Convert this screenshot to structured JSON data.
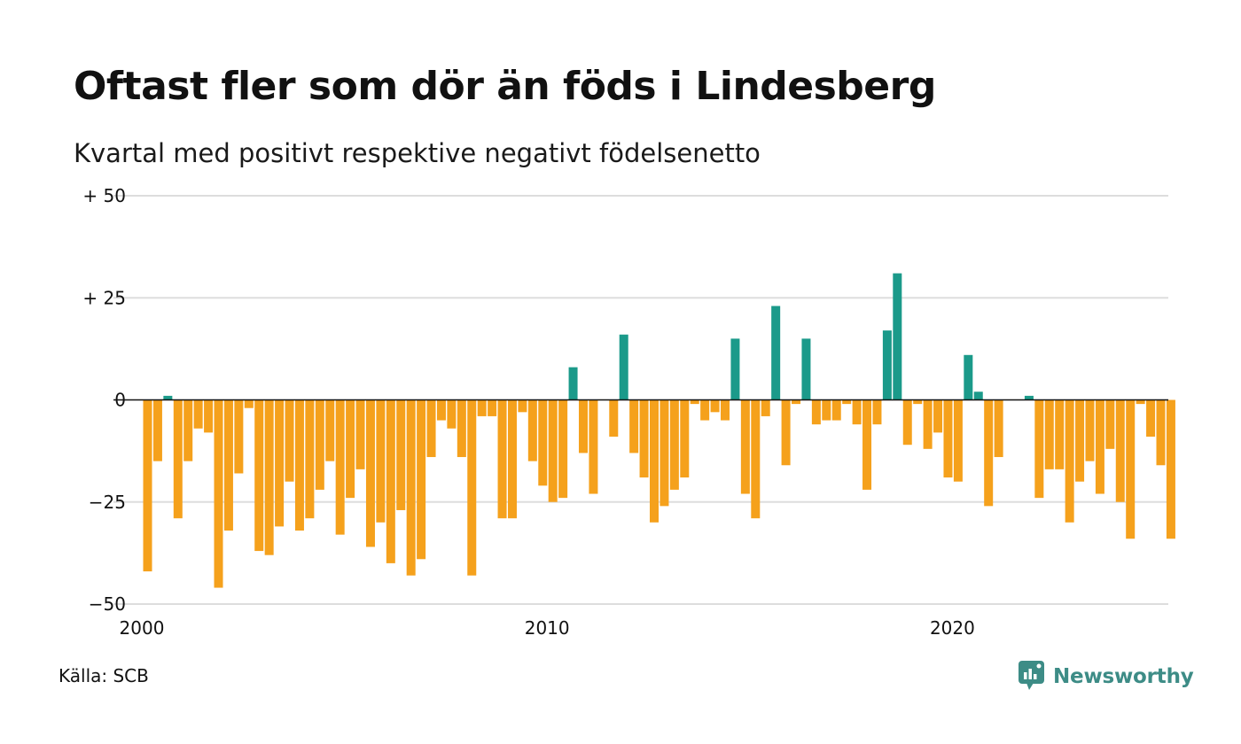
{
  "title": "Oftast fler som dör än föds i Lindesberg",
  "subtitle": "Kvartal med positivt respektive negativt födelsenetto",
  "source": "Källa: SCB",
  "brand": {
    "name": "Newsworthy",
    "icon": "newsworthy-logo-icon",
    "color": "#3d8c86"
  },
  "colors": {
    "positive": "#1b9a8a",
    "negative": "#f5a11c",
    "grid": "#dddddd",
    "zero_line": "#111111"
  },
  "chart_data": {
    "type": "bar",
    "title": "Oftast fler som dör än föds i Lindesberg",
    "subtitle": "Kvartal med positivt respektive negativt födelsenetto",
    "xlabel": "",
    "ylabel": "",
    "ylim": [
      -50,
      50
    ],
    "y_ticks": [
      {
        "value": 50,
        "label": "+ 50"
      },
      {
        "value": 25,
        "label": "+ 25"
      },
      {
        "value": 0,
        "label": "0"
      },
      {
        "value": -25,
        "label": "−25"
      },
      {
        "value": -50,
        "label": "−50"
      }
    ],
    "x_ticks": [
      {
        "year": 2000,
        "label": "2000"
      },
      {
        "year": 2010,
        "label": "2010"
      },
      {
        "year": 2020,
        "label": "2020"
      }
    ],
    "x_start": "2000 Q1",
    "grid": true,
    "legend": "none",
    "values": [
      -42,
      -15,
      1,
      -29,
      -15,
      -7,
      -8,
      -46,
      -32,
      -18,
      -2,
      -37,
      -38,
      -31,
      -20,
      -32,
      -29,
      -22,
      -15,
      -33,
      -24,
      -17,
      -36,
      -30,
      -40,
      -27,
      -43,
      -39,
      -14,
      -5,
      -7,
      -14,
      -43,
      -4,
      -4,
      -29,
      -29,
      -3,
      -15,
      -21,
      -25,
      -24,
      8,
      -13,
      -23,
      0,
      -9,
      16,
      -13,
      -19,
      -30,
      -26,
      -22,
      -19,
      -1,
      -5,
      -3,
      -5,
      15,
      -23,
      -29,
      -4,
      23,
      -16,
      -1,
      15,
      -6,
      -5,
      -5,
      -1,
      -6,
      -22,
      -6,
      17,
      31,
      -11,
      -1,
      -12,
      -8,
      -19,
      -20,
      11,
      2,
      -26,
      -14,
      0,
      0,
      1,
      -24,
      -17,
      -17,
      -30,
      -20,
      -15,
      -23,
      -12,
      -25,
      -34,
      -1,
      -9,
      -16,
      -34
    ]
  }
}
